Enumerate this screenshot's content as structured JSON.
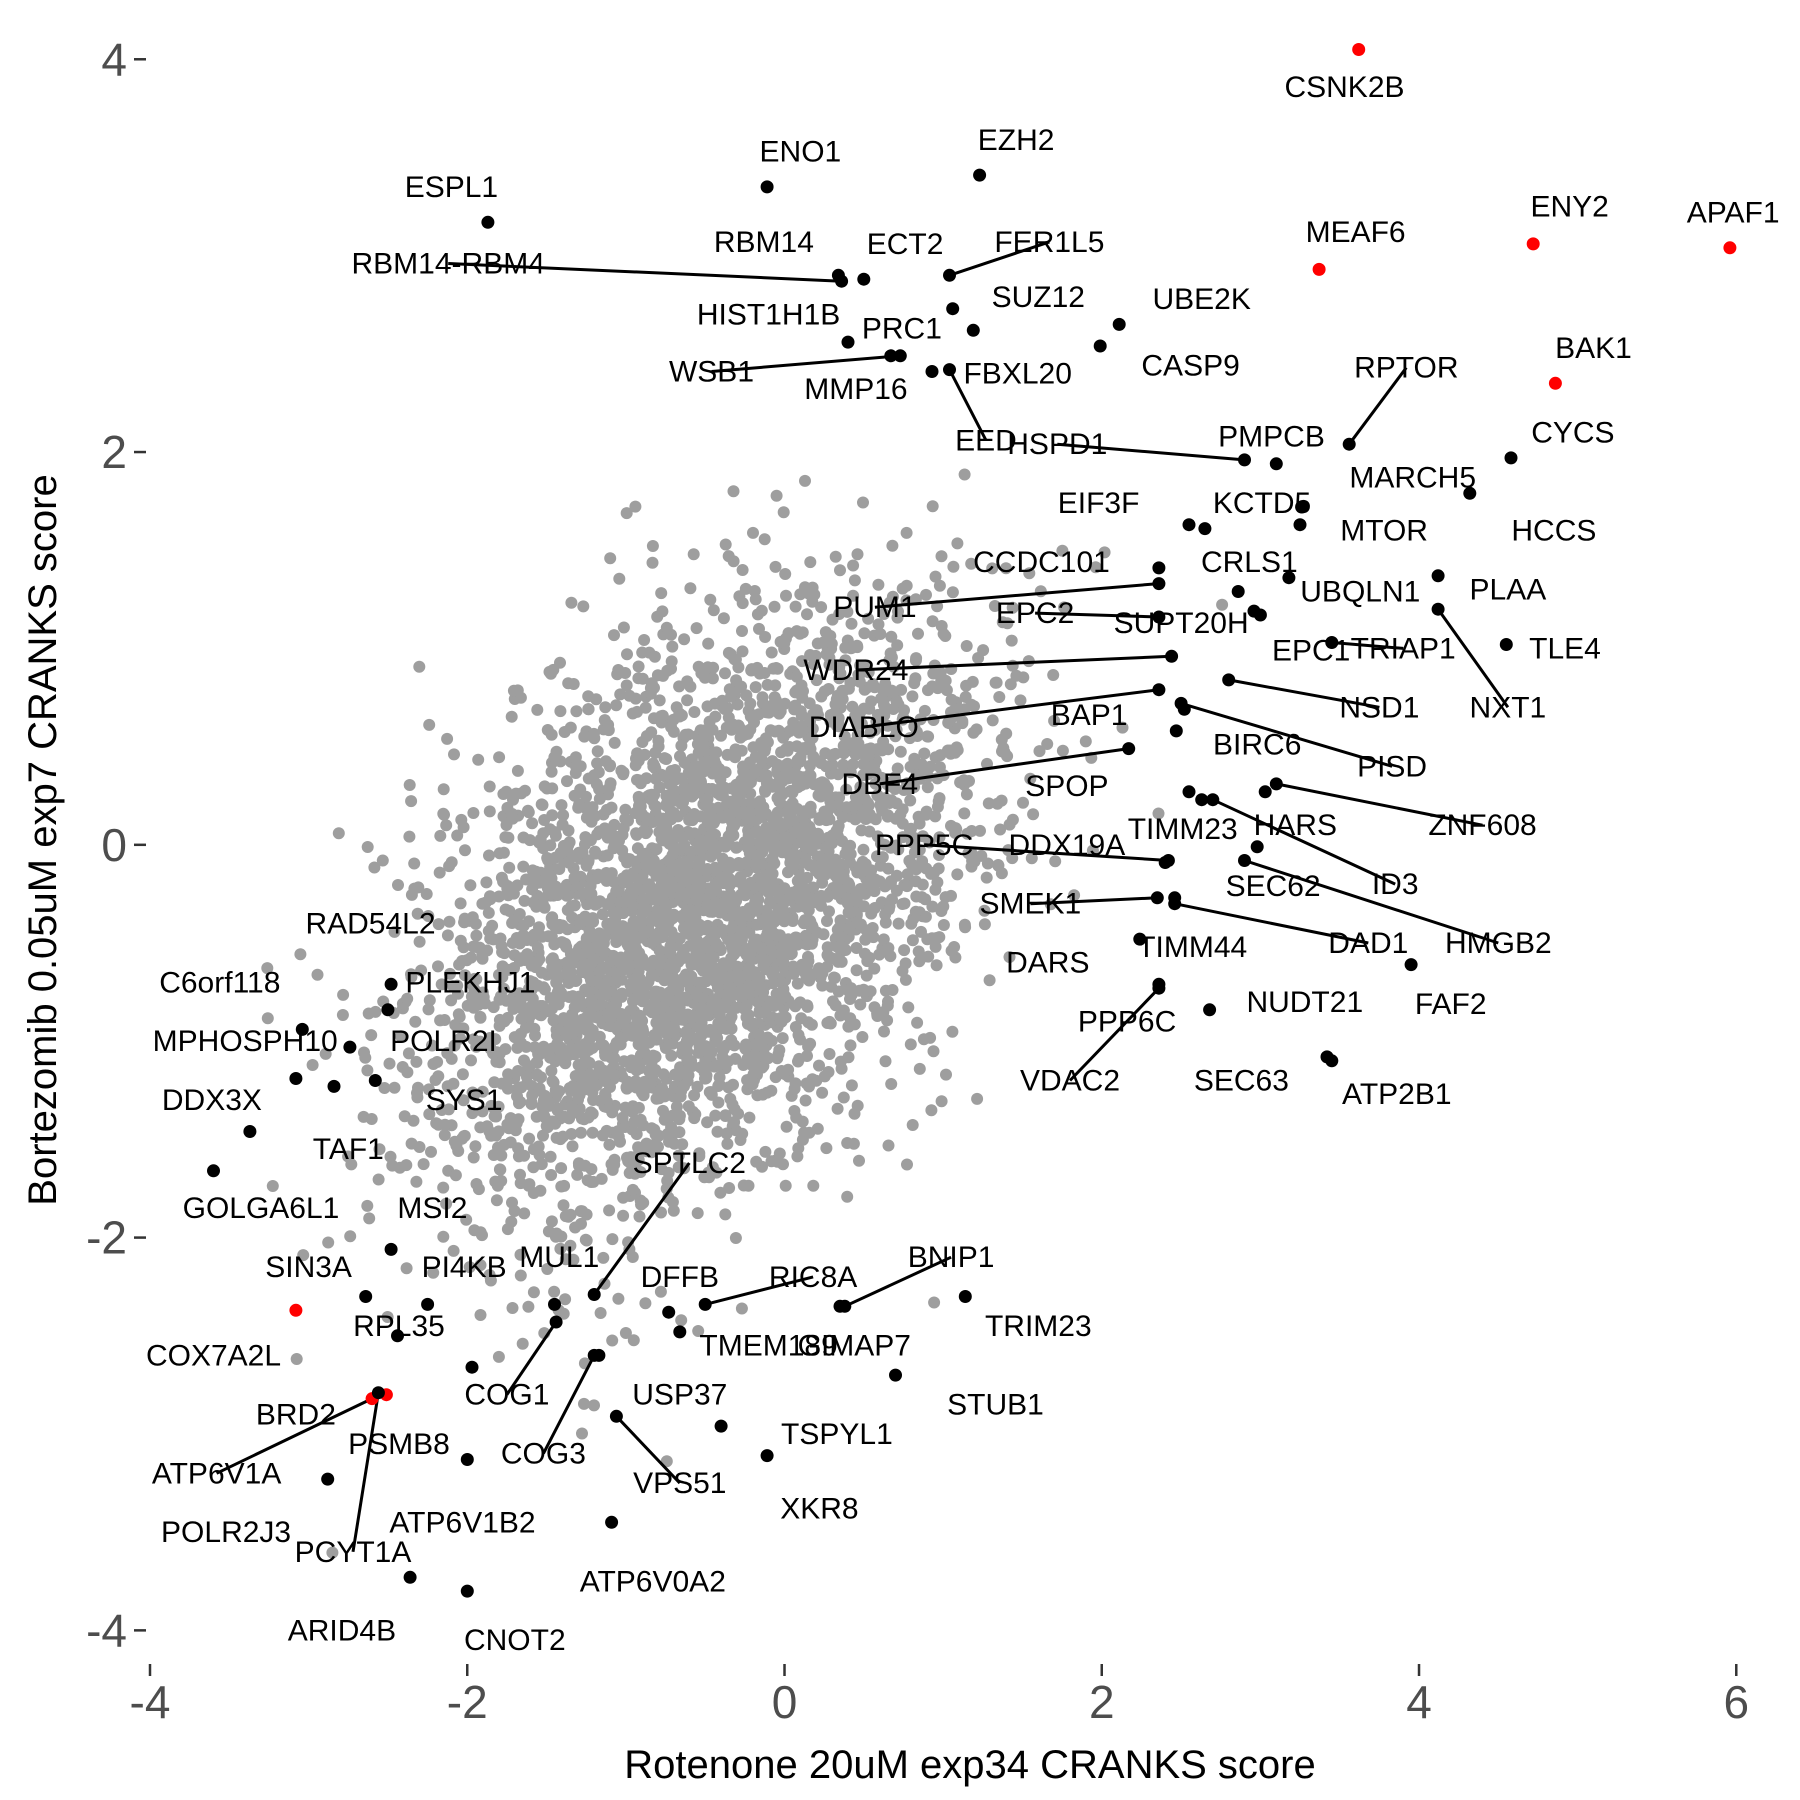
{
  "chart_data": {
    "type": "scatter",
    "xlabel": "Rotenone 20uM exp34 CRANKS score",
    "ylabel": "Bortezomib 0.05uM exp7 CRANKS score",
    "xlim": [
      -4,
      6.2
    ],
    "ylim": [
      -4.1,
      4.2
    ],
    "x_ticks": [
      -4,
      -2,
      0,
      2,
      4,
      6
    ],
    "y_ticks": [
      -4,
      -2,
      0,
      2,
      4
    ],
    "grid": false,
    "legend": "none",
    "colors": {
      "background": "#ffffff",
      "cloud": "#9e9e9e",
      "highlight_black": "#000000",
      "highlight_red": "#ff0000"
    },
    "background_cloud": {
      "description_free": true,
      "color": "#9e9e9e",
      "point_count": 3800,
      "x_sd": 0.85,
      "y_sd": 0.75,
      "correlation": 0.45,
      "seed": 7
    },
    "labeled_points": [
      {
        "name": "CSNK2B",
        "x": 3.62,
        "y": 4.05,
        "color": "#ff0000",
        "lx": 3.53,
        "ly": 3.86
      },
      {
        "name": "APAF1",
        "x": 5.96,
        "y": 3.04,
        "color": "#ff0000",
        "lx": 5.98,
        "ly": 3.22
      },
      {
        "name": "ENY2",
        "x": 4.72,
        "y": 3.06,
        "color": "#ff0000",
        "lx": 4.95,
        "ly": 3.25
      },
      {
        "name": "MEAF6",
        "x": 3.37,
        "y": 2.93,
        "color": "#ff0000",
        "lx": 3.6,
        "ly": 3.12
      },
      {
        "name": "BAK1",
        "x": 4.86,
        "y": 2.35,
        "color": "#ff0000",
        "lx": 5.1,
        "ly": 2.53
      },
      {
        "name": "EZH2",
        "x": 1.23,
        "y": 3.41,
        "color": "#000000",
        "lx": 1.46,
        "ly": 3.59
      },
      {
        "name": "ENO1",
        "x": -0.11,
        "y": 3.35,
        "color": "#000000",
        "lx": 0.1,
        "ly": 3.53
      },
      {
        "name": "ESPL1",
        "x": -1.87,
        "y": 3.17,
        "color": "#000000",
        "lx": -2.1,
        "ly": 3.35
      },
      {
        "name": "RBM14",
        "x": 0.34,
        "y": 2.9,
        "color": "#000000",
        "lx": -0.13,
        "ly": 3.07
      },
      {
        "name": "RBM14-RBM4",
        "x": 0.36,
        "y": 2.87,
        "color": "#000000",
        "lx": -2.12,
        "ly": 2.96,
        "leader": true
      },
      {
        "name": "ECT2",
        "x": 0.5,
        "y": 2.88,
        "color": "#000000",
        "lx": 0.76,
        "ly": 3.06
      },
      {
        "name": "FER1L5",
        "x": 1.04,
        "y": 2.9,
        "color": "#000000",
        "lx": 1.67,
        "ly": 3.07,
        "leader": true
      },
      {
        "name": "SUZ12",
        "x": 1.06,
        "y": 2.73,
        "color": "#000000",
        "lx": 1.6,
        "ly": 2.79
      },
      {
        "name": "HIST1H1B",
        "x": 0.4,
        "y": 2.56,
        "color": "#000000",
        "lx": -0.1,
        "ly": 2.7
      },
      {
        "name": "PRC1",
        "x": 0.67,
        "y": 2.49,
        "color": "#000000",
        "lx": 0.74,
        "ly": 2.63
      },
      {
        "name": "UBE2K",
        "x": 2.11,
        "y": 2.65,
        "color": "#000000",
        "lx": 2.63,
        "ly": 2.78
      },
      {
        "name": "MMP16",
        "x": 1.19,
        "y": 2.62,
        "color": "#000000",
        "lx": 0.45,
        "ly": 2.32
      },
      {
        "name": "WSB1",
        "x": 0.73,
        "y": 2.49,
        "color": "#000000",
        "lx": -0.46,
        "ly": 2.41,
        "leader": true
      },
      {
        "name": "FBXL20",
        "x": 0.93,
        "y": 2.41,
        "color": "#000000",
        "lx": 1.47,
        "ly": 2.4
      },
      {
        "name": "EED",
        "x": 1.04,
        "y": 2.42,
        "color": "#000000",
        "lx": 1.27,
        "ly": 2.06,
        "leader": true
      },
      {
        "name": "CASP9",
        "x": 1.99,
        "y": 2.54,
        "color": "#000000",
        "lx": 2.56,
        "ly": 2.44
      },
      {
        "name": "RPTOR",
        "x": 3.56,
        "y": 2.04,
        "color": "#000000",
        "lx": 3.92,
        "ly": 2.43,
        "leader": true
      },
      {
        "name": "CYCS",
        "x": 4.58,
        "y": 1.97,
        "color": "#000000",
        "lx": 4.97,
        "ly": 2.1
      },
      {
        "name": "PMPCB",
        "x": 3.1,
        "y": 1.94,
        "color": "#000000",
        "lx": 3.07,
        "ly": 2.08
      },
      {
        "name": "HSPD1",
        "x": 2.9,
        "y": 1.96,
        "color": "#000000",
        "lx": 1.72,
        "ly": 2.04,
        "leader": true
      },
      {
        "name": "MARCH5",
        "x": 3.26,
        "y": 1.72,
        "color": "#000000",
        "lx": 3.96,
        "ly": 1.87
      },
      {
        "name": "EIF3F",
        "x": 2.55,
        "y": 1.63,
        "color": "#000000",
        "lx": 1.98,
        "ly": 1.74
      },
      {
        "name": "KCTD5",
        "x": 2.65,
        "y": 1.61,
        "color": "#000000",
        "lx": 3.01,
        "ly": 1.74
      },
      {
        "name": "HCCS",
        "x": 4.32,
        "y": 1.79,
        "color": "#000000",
        "lx": 4.85,
        "ly": 1.6
      },
      {
        "name": "MTOR",
        "x": 3.25,
        "y": 1.63,
        "color": "#000000",
        "lx": 3.78,
        "ly": 1.6
      },
      {
        "name": "CCDC101",
        "x": 2.36,
        "y": 1.41,
        "color": "#000000",
        "lx": 1.62,
        "ly": 1.44
      },
      {
        "name": "CRLS1",
        "x": 2.86,
        "y": 1.29,
        "color": "#000000",
        "lx": 2.93,
        "ly": 1.44
      },
      {
        "name": "UBQLN1",
        "x": 3.18,
        "y": 1.36,
        "color": "#000000",
        "lx": 3.63,
        "ly": 1.29
      },
      {
        "name": "PLAA",
        "x": 4.12,
        "y": 1.37,
        "color": "#000000",
        "lx": 4.56,
        "ly": 1.3
      },
      {
        "name": "PUM1",
        "x": 2.36,
        "y": 1.33,
        "color": "#000000",
        "lx": 0.57,
        "ly": 1.21,
        "leader": true
      },
      {
        "name": "EPC2",
        "x": 2.36,
        "y": 1.16,
        "color": "#000000",
        "lx": 1.58,
        "ly": 1.18,
        "leader": true
      },
      {
        "name": "SUPT20H",
        "x": 2.96,
        "y": 1.19,
        "color": "#000000",
        "lx": 2.5,
        "ly": 1.13
      },
      {
        "name": "EPC1",
        "x": 3.0,
        "y": 1.17,
        "color": "#000000",
        "lx": 3.32,
        "ly": 0.99
      },
      {
        "name": "TRIAP1",
        "x": 3.45,
        "y": 1.03,
        "color": "#000000",
        "lx": 3.9,
        "ly": 1.0,
        "leader": true
      },
      {
        "name": "TLE4",
        "x": 4.55,
        "y": 1.02,
        "color": "#000000",
        "lx": 4.92,
        "ly": 1.0
      },
      {
        "name": "NXT1",
        "x": 4.12,
        "y": 1.2,
        "color": "#000000",
        "lx": 4.56,
        "ly": 0.7,
        "leader": true
      },
      {
        "name": "WDR24",
        "x": 2.44,
        "y": 0.96,
        "color": "#000000",
        "lx": 0.45,
        "ly": 0.89,
        "leader": true
      },
      {
        "name": "NSD1",
        "x": 2.8,
        "y": 0.84,
        "color": "#000000",
        "lx": 3.75,
        "ly": 0.7,
        "leader": true
      },
      {
        "name": "DIABLO",
        "x": 2.36,
        "y": 0.79,
        "color": "#000000",
        "lx": 0.5,
        "ly": 0.6,
        "leader": true
      },
      {
        "name": "BAP1",
        "x": 2.52,
        "y": 0.69,
        "color": "#000000",
        "lx": 1.92,
        "ly": 0.66
      },
      {
        "name": "BIRC6",
        "x": 2.47,
        "y": 0.58,
        "color": "#000000",
        "lx": 2.98,
        "ly": 0.51
      },
      {
        "name": "PISD",
        "x": 2.5,
        "y": 0.72,
        "color": "#000000",
        "lx": 3.83,
        "ly": 0.4,
        "leader": true
      },
      {
        "name": "DBF4",
        "x": 2.17,
        "y": 0.49,
        "color": "#000000",
        "lx": 0.6,
        "ly": 0.31,
        "leader": true
      },
      {
        "name": "SPOP",
        "x": 2.55,
        "y": 0.27,
        "color": "#000000",
        "lx": 1.78,
        "ly": 0.3
      },
      {
        "name": "ZNF608",
        "x": 3.1,
        "y": 0.31,
        "color": "#000000",
        "lx": 4.4,
        "ly": 0.1,
        "leader": true
      },
      {
        "name": "HARS",
        "x": 3.03,
        "y": 0.27,
        "color": "#000000",
        "lx": 3.22,
        "ly": 0.1
      },
      {
        "name": "TIMM23",
        "x": 2.63,
        "y": 0.23,
        "color": "#000000",
        "lx": 2.51,
        "ly": 0.08
      },
      {
        "name": "ID3",
        "x": 2.7,
        "y": 0.23,
        "color": "#000000",
        "lx": 3.85,
        "ly": -0.2,
        "leader": true
      },
      {
        "name": "PPP5C",
        "x": 2.42,
        "y": -0.08,
        "color": "#000000",
        "lx": 0.88,
        "ly": 0.0,
        "leader": true
      },
      {
        "name": "DDX19A",
        "x": 2.4,
        "y": -0.09,
        "color": "#000000",
        "lx": 1.78,
        "ly": 0.0
      },
      {
        "name": "SEC62",
        "x": 2.98,
        "y": -0.01,
        "color": "#000000",
        "lx": 3.08,
        "ly": -0.21
      },
      {
        "name": "HMGB2",
        "x": 2.9,
        "y": -0.08,
        "color": "#000000",
        "lx": 4.5,
        "ly": -0.5,
        "leader": true
      },
      {
        "name": "SMEK1",
        "x": 2.35,
        "y": -0.27,
        "color": "#000000",
        "lx": 1.55,
        "ly": -0.3,
        "leader": true
      },
      {
        "name": "DAD1",
        "x": 2.46,
        "y": -0.3,
        "color": "#000000",
        "lx": 3.68,
        "ly": -0.5,
        "leader": true
      },
      {
        "name": "TIMM44",
        "x": 2.46,
        "y": -0.27,
        "color": "#000000",
        "lx": 2.57,
        "ly": -0.52
      },
      {
        "name": "DARS",
        "x": 2.24,
        "y": -0.48,
        "color": "#000000",
        "lx": 1.66,
        "ly": -0.6
      },
      {
        "name": "FAF2",
        "x": 3.95,
        "y": -0.61,
        "color": "#000000",
        "lx": 4.2,
        "ly": -0.81
      },
      {
        "name": "NUDT21",
        "x": 2.68,
        "y": -0.84,
        "color": "#000000",
        "lx": 3.28,
        "ly": -0.8
      },
      {
        "name": "PPP6C",
        "x": 2.36,
        "y": -0.71,
        "color": "#000000",
        "lx": 2.16,
        "ly": -0.9
      },
      {
        "name": "VDAC2",
        "x": 2.36,
        "y": -0.73,
        "color": "#000000",
        "lx": 1.8,
        "ly": -1.2,
        "leader": true
      },
      {
        "name": "SEC63",
        "x": 3.42,
        "y": -1.08,
        "color": "#000000",
        "lx": 2.88,
        "ly": -1.2
      },
      {
        "name": "ATP2B1",
        "x": 3.45,
        "y": -1.1,
        "color": "#000000",
        "lx": 3.86,
        "ly": -1.27
      },
      {
        "name": "RAD54L2",
        "x": -2.48,
        "y": -0.71,
        "color": "#000000",
        "lx": -2.61,
        "ly": -0.4
      },
      {
        "name": "C6orf118",
        "x": -3.04,
        "y": -0.94,
        "color": "#000000",
        "lx": -3.56,
        "ly": -0.7
      },
      {
        "name": "PLEKHJ1",
        "x": -2.5,
        "y": -0.84,
        "color": "#000000",
        "lx": -1.98,
        "ly": -0.7
      },
      {
        "name": "MPHOSPH10",
        "x": -2.74,
        "y": -1.03,
        "color": "#000000",
        "lx": -3.4,
        "ly": -1.0
      },
      {
        "name": "POLR2I",
        "x": -2.58,
        "y": -1.2,
        "color": "#000000",
        "lx": -2.15,
        "ly": -1.0
      },
      {
        "name": "DDX3X",
        "x": -3.08,
        "y": -1.19,
        "color": "#000000",
        "lx": -3.61,
        "ly": -1.3
      },
      {
        "name": "SYS1",
        "x": -2.84,
        "y": -1.23,
        "color": "#000000",
        "lx": -2.02,
        "ly": -1.3
      },
      {
        "name": "TAF1",
        "x": -3.37,
        "y": -1.46,
        "color": "#000000",
        "lx": -2.75,
        "ly": -1.55
      },
      {
        "name": "GOLGA6L1",
        "x": -3.6,
        "y": -1.66,
        "color": "#000000",
        "lx": -3.3,
        "ly": -1.85
      },
      {
        "name": "MSI2",
        "x": -2.48,
        "y": -2.06,
        "color": "#000000",
        "lx": -2.22,
        "ly": -1.85
      },
      {
        "name": "SPTLC2",
        "x": -1.2,
        "y": -2.29,
        "color": "#000000",
        "lx": -0.6,
        "ly": -1.62,
        "leader": true
      },
      {
        "name": "SIN3A",
        "x": -2.64,
        "y": -2.3,
        "color": "#000000",
        "lx": -3.0,
        "ly": -2.15
      },
      {
        "name": "PI4KB",
        "x": -2.25,
        "y": -2.34,
        "color": "#000000",
        "lx": -2.02,
        "ly": -2.15
      },
      {
        "name": "MUL1",
        "x": -1.45,
        "y": -2.34,
        "color": "#000000",
        "lx": -1.42,
        "ly": -2.1
      },
      {
        "name": "DFFB",
        "x": -0.73,
        "y": -2.38,
        "color": "#000000",
        "lx": -0.66,
        "ly": -2.2
      },
      {
        "name": "RIC8A",
        "x": -0.5,
        "y": -2.34,
        "color": "#000000",
        "lx": 0.18,
        "ly": -2.2,
        "leader": true
      },
      {
        "name": "BNIP1",
        "x": 0.38,
        "y": -2.35,
        "color": "#000000",
        "lx": 1.05,
        "ly": -2.1,
        "leader": true
      },
      {
        "name": "TRIM23",
        "x": 1.14,
        "y": -2.3,
        "color": "#000000",
        "lx": 1.6,
        "ly": -2.45
      },
      {
        "name": "COX7A2L",
        "x": -3.08,
        "y": -2.37,
        "color": "#ff0000",
        "lx": -3.6,
        "ly": -2.6
      },
      {
        "name": "RPL35",
        "x": -2.44,
        "y": -2.5,
        "color": "#000000",
        "lx": -2.43,
        "ly": -2.45
      },
      {
        "name": "TMEM189",
        "x": -0.66,
        "y": -2.48,
        "color": "#000000",
        "lx": -0.1,
        "ly": -2.55
      },
      {
        "name": "GIMAP7",
        "x": 0.35,
        "y": -2.35,
        "color": "#000000",
        "lx": 0.44,
        "ly": -2.55
      },
      {
        "name": "COG1",
        "x": -1.44,
        "y": -2.43,
        "color": "#000000",
        "lx": -1.75,
        "ly": -2.8,
        "leader": true
      },
      {
        "name": "USP37",
        "x": -1.17,
        "y": -2.6,
        "color": "#000000",
        "lx": -0.66,
        "ly": -2.8
      },
      {
        "name": "STUB1",
        "x": 0.7,
        "y": -2.7,
        "color": "#000000",
        "lx": 1.33,
        "ly": -2.85
      },
      {
        "name": "BRD2",
        "x": -2.51,
        "y": -2.8,
        "color": "#ff0000",
        "lx": -3.08,
        "ly": -2.9
      },
      {
        "name": "PSMB8",
        "x": -1.97,
        "y": -2.66,
        "color": "#000000",
        "lx": -2.43,
        "ly": -3.05
      },
      {
        "name": "COG3",
        "x": -1.2,
        "y": -2.6,
        "color": "#000000",
        "lx": -1.52,
        "ly": -3.1,
        "leader": true
      },
      {
        "name": "TSPYL1",
        "x": -0.4,
        "y": -2.96,
        "color": "#000000",
        "lx": 0.33,
        "ly": -3.0
      },
      {
        "name": "ATP6V1A",
        "x": -2.6,
        "y": -2.82,
        "color": "#ff0000",
        "lx": -3.58,
        "ly": -3.2,
        "leader": true
      },
      {
        "name": "VPS51",
        "x": -1.06,
        "y": -2.91,
        "color": "#000000",
        "lx": -0.66,
        "ly": -3.25,
        "leader": true
      },
      {
        "name": "XKR8",
        "x": -0.11,
        "y": -3.11,
        "color": "#000000",
        "lx": 0.22,
        "ly": -3.38
      },
      {
        "name": "ATP6V1B2",
        "x": -2.0,
        "y": -3.13,
        "color": "#000000",
        "lx": -2.03,
        "ly": -3.45
      },
      {
        "name": "POLR2J3",
        "x": -2.88,
        "y": -3.23,
        "color": "#000000",
        "lx": -3.52,
        "ly": -3.5
      },
      {
        "name": "PCYT1A",
        "x": -2.56,
        "y": -2.79,
        "color": "#000000",
        "lx": -2.72,
        "ly": -3.6,
        "leader": true
      },
      {
        "name": "ATP6V0A2",
        "x": -1.09,
        "y": -3.45,
        "color": "#000000",
        "lx": -0.83,
        "ly": -3.75
      },
      {
        "name": "ARID4B",
        "x": -2.36,
        "y": -3.73,
        "color": "#000000",
        "lx": -2.79,
        "ly": -4.0
      },
      {
        "name": "CNOT2",
        "x": -2.0,
        "y": -3.8,
        "color": "#000000",
        "lx": -1.7,
        "ly": -4.05
      }
    ]
  }
}
